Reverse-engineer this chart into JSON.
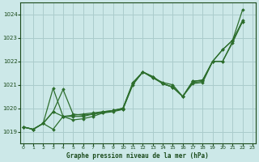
{
  "title": "Graphe pression niveau de la mer (hPa)",
  "background_color": "#cce8e8",
  "grid_color": "#aacccc",
  "line_color": "#2d6e2d",
  "text_color": "#1a4a1a",
  "ylim": [
    1018.5,
    1024.5
  ],
  "yticks": [
    1019,
    1020,
    1021,
    1022,
    1023,
    1024
  ],
  "xlim": [
    -0.3,
    23.3
  ],
  "xticks": [
    0,
    1,
    2,
    3,
    4,
    5,
    6,
    7,
    8,
    9,
    10,
    11,
    12,
    13,
    14,
    15,
    16,
    17,
    18,
    19,
    20,
    21,
    22,
    23
  ],
  "series": [
    [
      1019.2,
      1019.1,
      1019.35,
      1019.85,
      1019.65,
      1019.7,
      1019.75,
      1019.8,
      1019.85,
      1019.9,
      1020.0,
      1021.1,
      1021.55,
      1021.3,
      1021.1,
      1021.0,
      1020.5,
      1021.15,
      1021.2,
      1022.0,
      1022.5,
      1022.9,
      1024.2
    ],
    [
      1019.2,
      1019.1,
      1019.35,
      1019.85,
      1020.8,
      1019.75,
      1019.7,
      1019.75,
      1019.8,
      1019.9,
      1019.95,
      1021.05,
      1021.55,
      1021.35,
      1021.05,
      1020.9,
      1020.5,
      1021.15,
      1021.2,
      1022.0,
      1022.5,
      1022.9,
      1023.7
    ],
    [
      1019.2,
      1019.1,
      1019.35,
      1020.85,
      1019.65,
      1019.65,
      1019.65,
      1019.75,
      1019.85,
      1019.9,
      1020.0,
      1021.05,
      1021.55,
      1021.35,
      1021.05,
      1020.9,
      1020.5,
      1021.1,
      1021.15,
      1022.0,
      1022.0,
      1022.85,
      1023.75
    ],
    [
      1019.2,
      1019.1,
      1019.35,
      1019.1,
      1019.65,
      1019.5,
      1019.55,
      1019.65,
      1019.8,
      1019.85,
      1019.95,
      1021.0,
      1021.55,
      1021.3,
      1021.05,
      1020.9,
      1020.5,
      1021.05,
      1021.1,
      1022.0,
      1022.0,
      1022.8,
      1023.7
    ]
  ]
}
